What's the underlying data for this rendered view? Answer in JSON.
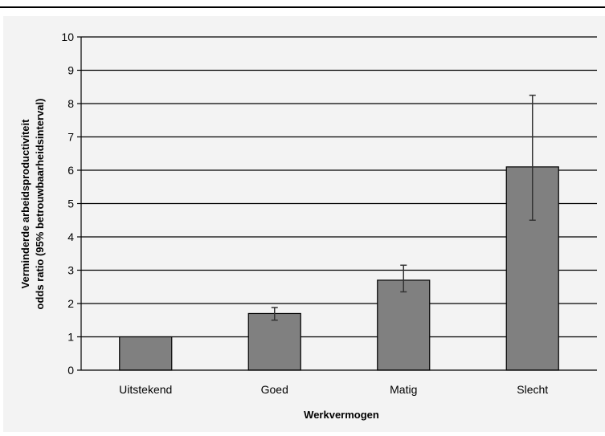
{
  "chart_data": {
    "type": "bar",
    "categories": [
      "Uitstekend",
      "Goed",
      "Matig",
      "Slecht"
    ],
    "values": [
      1.0,
      1.7,
      2.7,
      6.1
    ],
    "error_low": [
      1.0,
      1.5,
      2.35,
      4.5
    ],
    "error_high": [
      1.0,
      1.88,
      3.15,
      8.25
    ],
    "title": "",
    "xlabel": "Werkvermogen",
    "ylabel_lines": [
      "Verminderde arbeidsproductiviteit",
      "odds ratio (95% betrouwbaarheidsinterval)"
    ],
    "ylim": [
      0,
      10
    ],
    "yticks": [
      "0",
      "1",
      "2",
      "3",
      "4",
      "5",
      "6",
      "7",
      "8",
      "9",
      "10"
    ],
    "grid": true,
    "legend": "none",
    "bar_color": "#808080",
    "error_bar_color": "#333333"
  }
}
